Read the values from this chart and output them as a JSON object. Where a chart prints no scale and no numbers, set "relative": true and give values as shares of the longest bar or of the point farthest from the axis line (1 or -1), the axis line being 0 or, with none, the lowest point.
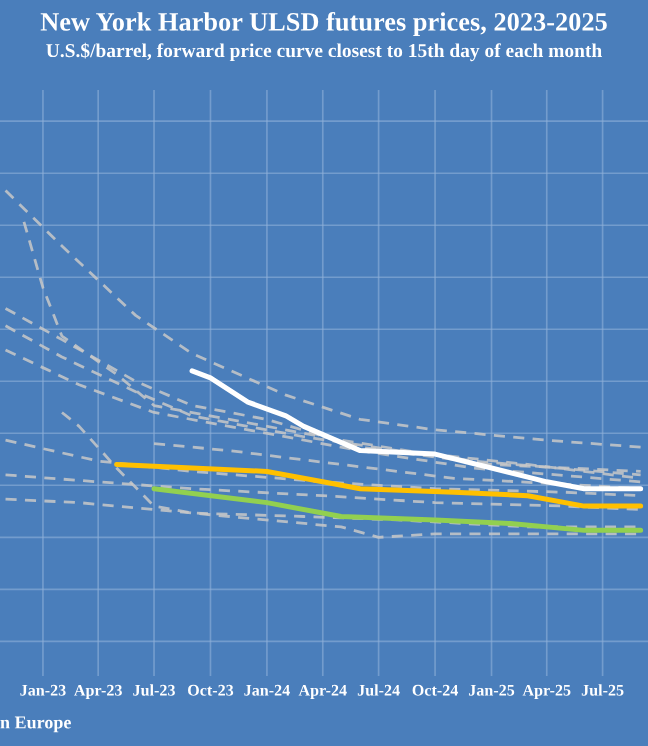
{
  "chart_data": {
    "type": "line",
    "title": "New York Harbor ULSD futures prices, 2023-2025",
    "subtitle": "U.S.$/barrel, forward price curve closest to 15th day of each month",
    "relative": true,
    "grid": true,
    "line_style": "dashed",
    "xlim": [
      "2022-10-23",
      "2025-09-13"
    ],
    "xticks": [
      {
        "value": "2023-01",
        "label": "Jan-23"
      },
      {
        "value": "2023-04",
        "label": "Apr-23"
      },
      {
        "value": "2023-07",
        "label": "Jul-23"
      },
      {
        "value": "2023-10",
        "label": "Oct-23"
      },
      {
        "value": "2024-01",
        "label": "Jan-24"
      },
      {
        "value": "2024-04",
        "label": "Apr-24"
      },
      {
        "value": "2024-07",
        "label": "Jul-24"
      },
      {
        "value": "2024-10",
        "label": "Oct-24"
      },
      {
        "value": "2025-01",
        "label": "Jan-25"
      },
      {
        "value": "2025-04",
        "label": "Apr-25"
      },
      {
        "value": "2025-07",
        "label": "Jul-25"
      }
    ],
    "annotations": [
      "n Europe"
    ],
    "series": [
      {
        "color": "#c8c8c8",
        "x": [
          "2022-11",
          "2023-02",
          "2023-06",
          "2023-09",
          "2024-02",
          "2024-06",
          "2024-10",
          "2025-04",
          "2025-09"
        ],
        "values": [
          1.0,
          0.84,
          0.64,
          0.53,
          0.41,
          0.34,
          0.31,
          0.28,
          0.26
        ]
      },
      {
        "color": "#c8c8c8",
        "x": [
          "2022-12",
          "2023-01",
          "2023-02",
          "2023-05",
          "2023-07",
          "2023-11",
          "2024-05",
          "2024-12",
          "2025-09"
        ],
        "values": [
          0.91,
          0.72,
          0.58,
          0.47,
          0.38,
          0.34,
          0.28,
          0.22,
          0.18
        ]
      },
      {
        "color": "#c8c8c8",
        "x": [
          "2022-11",
          "2023-02",
          "2023-06",
          "2023-09",
          "2024-01",
          "2024-06",
          "2025-01",
          "2025-09"
        ],
        "values": [
          0.66,
          0.57,
          0.45,
          0.38,
          0.34,
          0.26,
          0.21,
          0.19
        ]
      },
      {
        "color": "#c8c8c8",
        "x": [
          "2022-11",
          "2023-02",
          "2023-06",
          "2023-09",
          "2024-03",
          "2024-08",
          "2025-03",
          "2025-09"
        ],
        "values": [
          0.61,
          0.52,
          0.42,
          0.35,
          0.29,
          0.25,
          0.21,
          0.17
        ]
      },
      {
        "color": "#c8c8c8",
        "x": [
          "2022-11",
          "2023-03",
          "2023-07",
          "2023-12",
          "2024-06",
          "2024-12",
          "2025-09"
        ],
        "values": [
          0.54,
          0.44,
          0.36,
          0.31,
          0.25,
          0.2,
          0.16
        ]
      },
      {
        "color": "#c8c8c8",
        "x": [
          "2022-11",
          "2023-04",
          "2023-09",
          "2024-04",
          "2024-10",
          "2025-05",
          "2025-09"
        ],
        "values": [
          0.28,
          0.22,
          0.19,
          0.16,
          0.14,
          0.13,
          0.12
        ]
      },
      {
        "color": "#c8c8c8",
        "x": [
          "2022-11",
          "2023-04",
          "2023-09",
          "2024-04",
          "2024-10",
          "2025-05",
          "2025-09"
        ],
        "values": [
          0.18,
          0.16,
          0.14,
          0.12,
          0.1,
          0.09,
          0.08
        ]
      },
      {
        "color": "#c8c8c8",
        "x": [
          "2022-11",
          "2023-03",
          "2023-07",
          "2023-11",
          "2024-05",
          "2024-07",
          "2024-10",
          "2025-05",
          "2025-09"
        ],
        "values": [
          0.11,
          0.1,
          0.08,
          0.06,
          0.03,
          0.0,
          0.01,
          0.01,
          0.01
        ]
      },
      {
        "color": "#c8c8c8",
        "x": [
          "2023-02",
          "2023-03",
          "2023-05",
          "2023-07",
          "2023-09",
          "2024-03",
          "2024-08",
          "2025-03",
          "2025-09"
        ],
        "values": [
          0.36,
          0.32,
          0.2,
          0.09,
          0.07,
          0.06,
          0.05,
          0.03,
          0.03
        ]
      },
      {
        "color": "#c8c8c8",
        "x": [
          "2023-07",
          "2023-11",
          "2024-05",
          "2024-11",
          "2025-06",
          "2025-09"
        ],
        "values": [
          0.27,
          0.25,
          0.21,
          0.17,
          0.15,
          0.14
        ]
      },
      {
        "color": "#ffc000",
        "line_style": "solid",
        "x": [
          "2023-05",
          "2023-09",
          "2024-01",
          "2024-04",
          "2024-06",
          "2024-11",
          "2025-03",
          "2025-06",
          "2025-09"
        ],
        "values": [
          0.21,
          0.2,
          0.19,
          0.16,
          0.14,
          0.13,
          0.12,
          0.09,
          0.09
        ]
      },
      {
        "color": "#92d050",
        "line_style": "solid",
        "x": [
          "2023-07",
          "2024-01",
          "2024-05",
          "2024-10",
          "2025-02",
          "2025-06",
          "2025-09"
        ],
        "values": [
          0.14,
          0.1,
          0.06,
          0.05,
          0.04,
          0.02,
          0.02
        ]
      },
      {
        "color": "#ffffff",
        "line_style": "solid",
        "x": [
          "2023-09",
          "2023-10",
          "2023-12",
          "2024-02",
          "2024-03",
          "2024-06",
          "2024-10",
          "2025-01",
          "2025-04",
          "2025-06",
          "2025-09"
        ],
        "values": [
          0.48,
          0.46,
          0.39,
          0.35,
          0.32,
          0.25,
          0.24,
          0.2,
          0.16,
          0.14,
          0.14
        ]
      }
    ]
  }
}
